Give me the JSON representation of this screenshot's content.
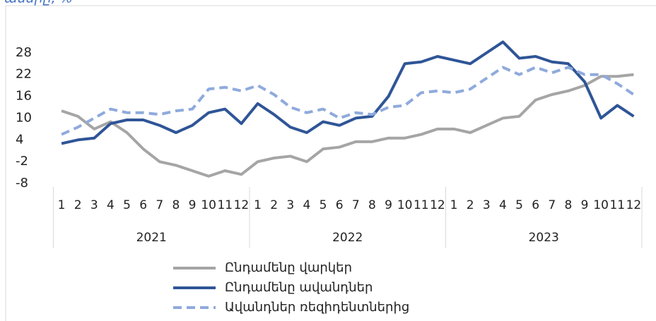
{
  "chart_data": {
    "type": "line",
    "title": "ամսիը, %",
    "categories": [
      "1",
      "2",
      "3",
      "4",
      "5",
      "6",
      "7",
      "8",
      "9",
      "10",
      "11",
      "12",
      "1",
      "2",
      "3",
      "4",
      "5",
      "6",
      "7",
      "8",
      "9",
      "10",
      "11",
      "12",
      "1",
      "2",
      "3",
      "4",
      "5",
      "6",
      "7",
      "8",
      "9",
      "10",
      "11",
      "12"
    ],
    "year_groups": [
      "2021",
      "2022",
      "2023"
    ],
    "ylim": [
      -8,
      34
    ],
    "yticks": [
      -8,
      -2,
      4,
      10,
      16,
      22,
      28
    ],
    "grid": false,
    "series": [
      {
        "name": "Ընդամենը վարկեր",
        "color": "#a5a5a5",
        "dash": false,
        "values": [
          12,
          10.5,
          7,
          9,
          6,
          1.5,
          -2,
          -3,
          -4.5,
          -6,
          -4.5,
          -5.5,
          -2,
          -1,
          -0.5,
          -2,
          1.5,
          2,
          3.5,
          3.5,
          4.5,
          4.5,
          5.5,
          7,
          7,
          6,
          8,
          10,
          10.5,
          15,
          16.5,
          17.5,
          19,
          21.5,
          21.5,
          22
        ]
      },
      {
        "name": "Ընդամենը ավանդներ",
        "color": "#2f5597",
        "dash": false,
        "values": [
          3,
          4,
          4.5,
          8.5,
          9.5,
          9.5,
          8,
          6,
          8,
          11.5,
          12.5,
          8.5,
          14,
          11,
          7.5,
          6,
          9,
          8,
          10,
          10.5,
          16,
          25,
          25.5,
          27,
          26,
          25,
          28,
          31,
          26.5,
          27,
          25.5,
          25,
          20,
          10,
          13.5,
          10.5
        ]
      },
      {
        "name": "Ավանդներ ռեզիդենտներից",
        "color": "#8faadc",
        "dash": true,
        "values": [
          5.5,
          7.5,
          10,
          12.5,
          11.5,
          11.5,
          11,
          12,
          12.5,
          18,
          18.5,
          17.5,
          19,
          16.5,
          13,
          11.5,
          12.5,
          10,
          11.5,
          11,
          13,
          13.5,
          17,
          17.5,
          17,
          18,
          21,
          24,
          22,
          24,
          22.5,
          24,
          22,
          22,
          19.5,
          16.5
        ]
      }
    ]
  }
}
